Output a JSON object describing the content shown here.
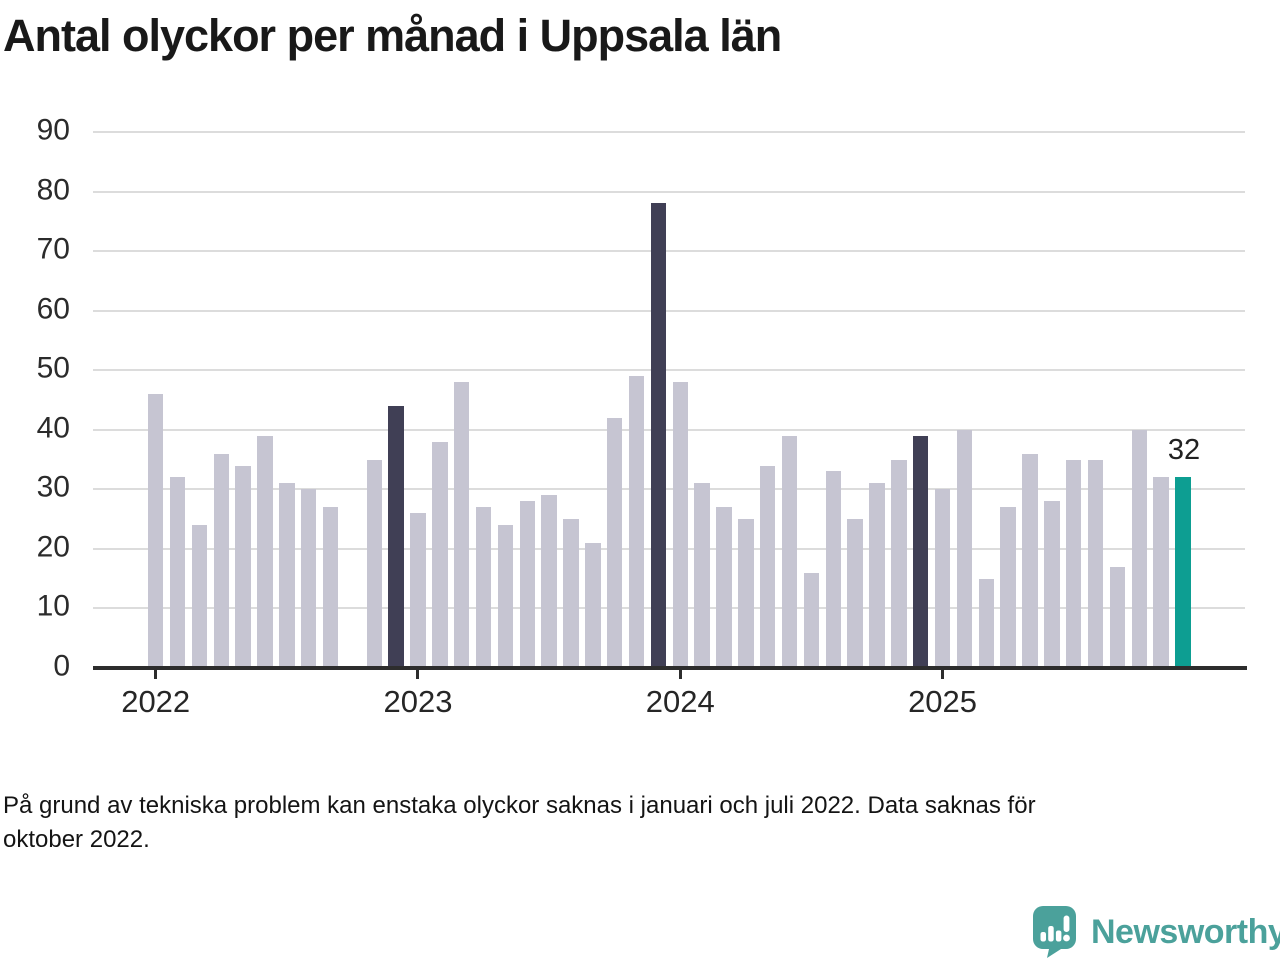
{
  "title": "Antal olyckor per månad i Uppsala län",
  "chart_data": {
    "type": "bar",
    "title": "Antal olyckor per månad i Uppsala län",
    "xlabel": "",
    "ylabel": "",
    "ylim": [
      0,
      90
    ],
    "yticks": [
      0,
      10,
      20,
      30,
      40,
      50,
      60,
      70,
      80,
      90
    ],
    "grid": "horizontal",
    "legend": "none",
    "x_tick_labels": [
      "2022",
      "2023",
      "2024",
      "2025"
    ],
    "months": [
      "2022-01",
      "2022-02",
      "2022-03",
      "2022-04",
      "2022-05",
      "2022-06",
      "2022-07",
      "2022-08",
      "2022-09",
      "2022-10",
      "2022-11",
      "2022-12",
      "2023-01",
      "2023-02",
      "2023-03",
      "2023-04",
      "2023-05",
      "2023-06",
      "2023-07",
      "2023-08",
      "2023-09",
      "2023-10",
      "2023-11",
      "2023-12",
      "2024-01",
      "2024-02",
      "2024-03",
      "2024-04",
      "2024-05",
      "2024-06",
      "2024-07",
      "2024-08",
      "2024-09",
      "2024-10",
      "2024-11",
      "2024-12",
      "2025-01",
      "2025-02",
      "2025-03",
      "2025-04",
      "2025-05",
      "2025-06",
      "2025-07",
      "2025-08",
      "2025-09",
      "2025-10",
      "2025-11",
      "2025-12"
    ],
    "values": [
      46,
      32,
      24,
      36,
      34,
      39,
      31,
      30,
      27,
      null,
      35,
      44,
      26,
      38,
      48,
      27,
      24,
      28,
      29,
      25,
      21,
      42,
      49,
      78,
      48,
      31,
      27,
      25,
      34,
      39,
      16,
      33,
      25,
      31,
      35,
      39,
      30,
      40,
      15,
      27,
      36,
      28,
      35,
      35,
      17,
      40,
      32,
      32
    ],
    "missing_months": [
      "2022-10"
    ],
    "december_highlight_months": [
      "2022-12",
      "2023-12",
      "2024-12"
    ],
    "latest_month": "2025-12",
    "latest_value_label": "32",
    "colors": {
      "bar_default": "#c6c5d2",
      "bar_december": "#403f55",
      "bar_latest": "#0d9e92",
      "axis": "#2d2d2d",
      "gridline": "#dcdcdc",
      "text": "#262626"
    }
  },
  "footnote": {
    "line1": "På grund av tekniska problem kan enstaka olyckor saknas i januari och juli 2022. Data saknas för",
    "line2": "oktober 2022."
  },
  "branding": {
    "name": "Newsworthy",
    "icon": "newsworthy-speech-bubble-chart-icon",
    "color": "#4BA19B"
  }
}
